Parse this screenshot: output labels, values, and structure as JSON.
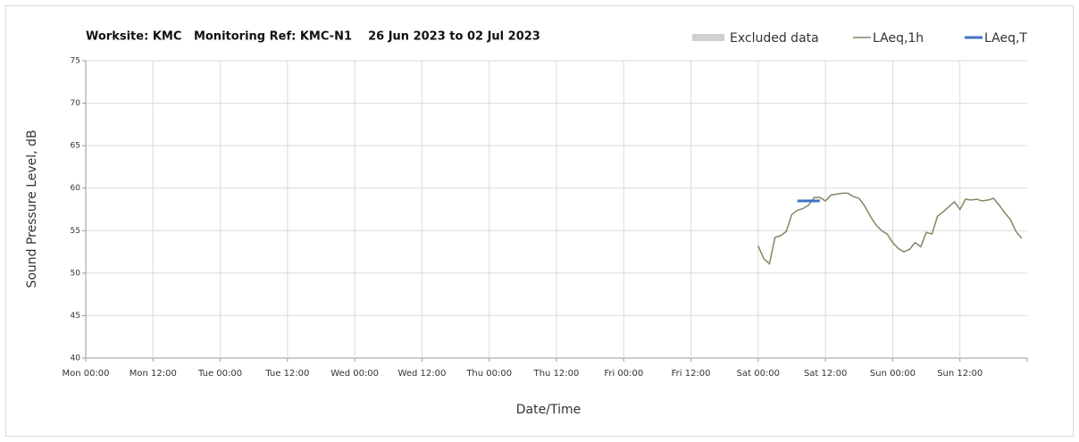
{
  "chart_data": {
    "type": "line",
    "title": "Worksite: KMC   Monitoring Ref: KMC-N1    26 Jun 2023 to 02 Jul 2023",
    "xlabel": "Date/Time",
    "ylabel": "Sound Pressure Level, dB",
    "xticks": [
      "Mon 00:00",
      "Mon 12:00",
      "Tue 00:00",
      "Tue 12:00",
      "Wed 00:00",
      "Wed 12:00",
      "Thu 00:00",
      "Thu 12:00",
      "Fri 00:00",
      "Fri 12:00",
      "Sat 00:00",
      "Sat 12:00",
      "Sun 00:00",
      "Sun 12:00"
    ],
    "ylim": [
      40,
      75
    ],
    "yticks": [
      40,
      45,
      50,
      55,
      60,
      65,
      70,
      75
    ],
    "grid": true,
    "series": [
      {
        "name": "Excluded data",
        "color": "#d0d0d0",
        "x": [],
        "values": []
      },
      {
        "name": "LAeq,1h",
        "color": "#7d8a64",
        "x": [
          "Sat 00:00",
          "Sat 01:00",
          "Sat 02:00",
          "Sat 03:00",
          "Sat 04:00",
          "Sat 05:00",
          "Sat 06:00",
          "Sat 07:00",
          "Sat 08:00",
          "Sat 09:00",
          "Sat 10:00",
          "Sat 11:00",
          "Sat 12:00",
          "Sat 13:00",
          "Sat 14:00",
          "Sat 15:00",
          "Sat 16:00",
          "Sat 17:00",
          "Sat 18:00",
          "Sat 19:00",
          "Sat 20:00",
          "Sat 21:00",
          "Sat 22:00",
          "Sat 23:00",
          "Sun 00:00",
          "Sun 01:00",
          "Sun 02:00",
          "Sun 03:00",
          "Sun 04:00",
          "Sun 05:00",
          "Sun 06:00",
          "Sun 07:00",
          "Sun 08:00",
          "Sun 09:00",
          "Sun 10:00",
          "Sun 11:00",
          "Sun 12:00",
          "Sun 13:00",
          "Sun 14:00",
          "Sun 15:00",
          "Sun 16:00",
          "Sun 17:00",
          "Sun 18:00",
          "Sun 19:00",
          "Sun 20:00",
          "Sun 21:00",
          "Sun 22:00",
          "Sun 23:00"
        ],
        "values": [
          53.2,
          51.7,
          51.1,
          54.2,
          54.4,
          54.9,
          56.9,
          57.4,
          57.6,
          58.0,
          58.9,
          58.9,
          58.5,
          59.2,
          59.3,
          59.4,
          59.4,
          59.0,
          58.8,
          57.9,
          56.7,
          55.7,
          55.0,
          54.6,
          53.6,
          52.9,
          52.5,
          52.8,
          53.6,
          53.1,
          54.8,
          54.6,
          56.7,
          57.2,
          57.8,
          58.4,
          57.5,
          58.7,
          58.6,
          58.7,
          58.5,
          58.6,
          58.8,
          58.0,
          57.1,
          56.3,
          54.9,
          54.1
        ]
      },
      {
        "name": "LAeq,T",
        "color": "#4472c4",
        "x": [
          "Sat 07:00",
          "Sat 11:00"
        ],
        "values": [
          58.5,
          58.5
        ]
      }
    ]
  }
}
